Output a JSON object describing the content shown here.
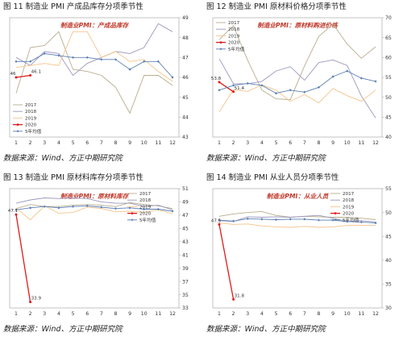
{
  "figures": [
    {
      "title": "图 11   制造业 PMI 产成品库存分项季节性",
      "source": "数据来源：Wind、方正中期研究院",
      "chart_data": {
        "type": "line",
        "title": "制造业PMI：产成品库存",
        "x": [
          1,
          2,
          3,
          4,
          5,
          6,
          7,
          8,
          9,
          10,
          11,
          12
        ],
        "ylim": [
          43,
          49
        ],
        "yticks": [
          43,
          44,
          45,
          46,
          47,
          48,
          49
        ],
        "grid": false,
        "legend": "bottom-left",
        "series": [
          {
            "name": "2017",
            "color": "#b7ad8f",
            "values": [
              45.2,
              47.5,
              47.6,
              48.3,
              46.4,
              46.3,
              46.1,
              45.5,
              44.2,
              46.1,
              46.1,
              45.6
            ]
          },
          {
            "name": "2018",
            "color": "#9c97bd",
            "values": [
              47.0,
              46.6,
              47.3,
              47.2,
              46.1,
              46.7,
              47.0,
              47.3,
              47.2,
              47.5,
              48.7,
              48.3
            ]
          },
          {
            "name": "2019",
            "color": "#f5c48a",
            "values": [
              46.5,
              46.6,
              46.7,
              46.6,
              48.3,
              48.3,
              47.0,
              47.3,
              46.8,
              46.9,
              46.3,
              45.8
            ]
          },
          {
            "name": "2020",
            "color": "#e01b1b",
            "values": [
              46.0,
              46.1
            ]
          },
          {
            "name": "5年均值",
            "color": "#5b7fb4",
            "values": [
              46.8,
              46.8,
              47.2,
              47.1,
              47.0,
              47.0,
              46.9,
              46.9,
              46.4,
              46.8,
              46.8,
              46.0
            ]
          }
        ],
        "labels": [
          {
            "x": 1,
            "y": 46.0,
            "text": "46"
          },
          {
            "x": 2,
            "y": 46.1,
            "text": "46.1"
          }
        ]
      }
    },
    {
      "title": "图 12   制造业 PMI 原材料价格分项季节性",
      "source": "数据来源：Wind、方正中期研究院",
      "chart_data": {
        "type": "line",
        "title": "制造业PMI：原材料购进价格",
        "x": [
          1,
          2,
          3,
          4,
          5,
          6,
          7,
          8,
          9,
          10,
          11,
          12
        ],
        "ylim": [
          40,
          70
        ],
        "yticks": [
          40,
          45,
          50,
          55,
          60,
          65,
          70
        ],
        "grid": false,
        "legend": "top-left",
        "series": [
          {
            "name": "2017",
            "color": "#b7ad8f",
            "values": [
              64.5,
              68.0,
              59.3,
              51.8,
              49.6,
              49.4,
              57.9,
              65.3,
              68.4,
              63.4,
              59.8,
              62.7
            ]
          },
          {
            "name": "2018",
            "color": "#9c97bd",
            "values": [
              59.7,
              53.4,
              53.4,
              54.0,
              56.6,
              57.7,
              54.3,
              58.7,
              59.4,
              58.0,
              50.3,
              44.8
            ]
          },
          {
            "name": "2019",
            "color": "#f5c48a",
            "values": [
              46.3,
              51.9,
              51.5,
              53.1,
              51.8,
              49.0,
              50.7,
              48.6,
              52.2,
              50.4,
              49.0,
              51.8
            ]
          },
          {
            "name": "2020",
            "color": "#e01b1b",
            "values": [
              53.8,
              51.4
            ]
          },
          {
            "name": "5年均值",
            "color": "#5b7fb4",
            "values": [
              51.8,
              53.0,
              53.5,
              53.0,
              51.0,
              51.8,
              51.3,
              52.5,
              55.2,
              56.6,
              54.8,
              54.0
            ]
          }
        ],
        "labels": [
          {
            "x": 1,
            "y": 53.8,
            "text": "53.8"
          },
          {
            "x": 2,
            "y": 51.4,
            "text": "51.4"
          }
        ]
      }
    },
    {
      "title": "图 13   制造业 PMI 原材料库存分项季节性",
      "source": "数据来源：Wind、方正中期研究院",
      "chart_data": {
        "type": "line",
        "title": "制造业PMI：原材料库存",
        "x": [
          1,
          2,
          3,
          4,
          5,
          6,
          7,
          8,
          9,
          10,
          11,
          12
        ],
        "ylim": [
          33,
          51
        ],
        "yticks": [
          33,
          35,
          37,
          39,
          41,
          43,
          45,
          47,
          49,
          51
        ],
        "grid": false,
        "legend": "top-right",
        "series": [
          {
            "name": "2017",
            "color": "#b7ad8f",
            "values": [
              48.0,
              48.6,
              48.3,
              48.3,
              48.5,
              48.6,
              48.5,
              48.3,
              48.9,
              48.6,
              48.4,
              48.0
            ]
          },
          {
            "name": "2018",
            "color": "#9c97bd",
            "values": [
              48.8,
              49.3,
              49.6,
              49.5,
              49.6,
              49.5,
              49.0,
              48.8,
              48.8,
              48.3,
              48.5,
              47.8
            ]
          },
          {
            "name": "2019",
            "color": "#f5c48a",
            "values": [
              48.1,
              46.3,
              48.4,
              47.3,
              47.4,
              48.2,
              48.0,
              47.5,
              47.6,
              47.4,
              47.8,
              47.2
            ]
          },
          {
            "name": "2020",
            "color": "#e01b1b",
            "values": [
              47.1,
              33.9
            ]
          },
          {
            "name": "5年均值",
            "color": "#5b7fb4",
            "values": [
              47.8,
              48.1,
              48.3,
              48.1,
              48.3,
              48.4,
              48.2,
              48.0,
              48.1,
              47.9,
              47.9,
              47.6
            ]
          }
        ],
        "labels": [
          {
            "x": 1,
            "y": 47.1,
            "text": "47.1"
          },
          {
            "x": 2,
            "y": 33.9,
            "text": "33.9"
          }
        ]
      }
    },
    {
      "title": "图 14   制造业 PMI 从业人员分项季节性",
      "source": "数据来源：Wind、方正中期研究院",
      "chart_data": {
        "type": "line",
        "title": "制造业PMI：从业人员",
        "x": [
          1,
          2,
          3,
          4,
          5,
          6,
          7,
          8,
          9,
          10,
          11,
          12
        ],
        "ylim": [
          30,
          55
        ],
        "yticks": [
          30,
          35,
          40,
          45,
          50,
          55
        ],
        "grid": false,
        "legend": "top-right",
        "series": [
          {
            "name": "2017",
            "color": "#b7ad8f",
            "values": [
              49.2,
              49.7,
              50.0,
              50.2,
              49.4,
              49.0,
              49.2,
              49.1,
              49.0,
              49.0,
              48.8,
              48.5
            ]
          },
          {
            "name": "2018",
            "color": "#9c97bd",
            "values": [
              48.3,
              48.1,
              49.1,
              49.0,
              49.1,
              49.0,
              49.2,
              49.4,
              48.8,
              48.1,
              48.3,
              48.0
            ]
          },
          {
            "name": "2019",
            "color": "#f5c48a",
            "values": [
              47.8,
              47.5,
              47.6,
              47.2,
              47.0,
              46.9,
              47.1,
              46.9,
              47.0,
              47.3,
              47.3,
              47.3
            ]
          },
          {
            "name": "2020",
            "color": "#e01b1b",
            "values": [
              47.5,
              31.8
            ]
          },
          {
            "name": "5年均值",
            "color": "#5b7fb4",
            "values": [
              48.4,
              48.2,
              48.7,
              48.6,
              48.5,
              48.6,
              48.6,
              48.4,
              48.4,
              48.1,
              48.0,
              47.8
            ]
          }
        ],
        "labels": [
          {
            "x": 1,
            "y": 47.5,
            "text": "47.5"
          },
          {
            "x": 2,
            "y": 31.8,
            "text": "31.8"
          }
        ]
      }
    }
  ]
}
